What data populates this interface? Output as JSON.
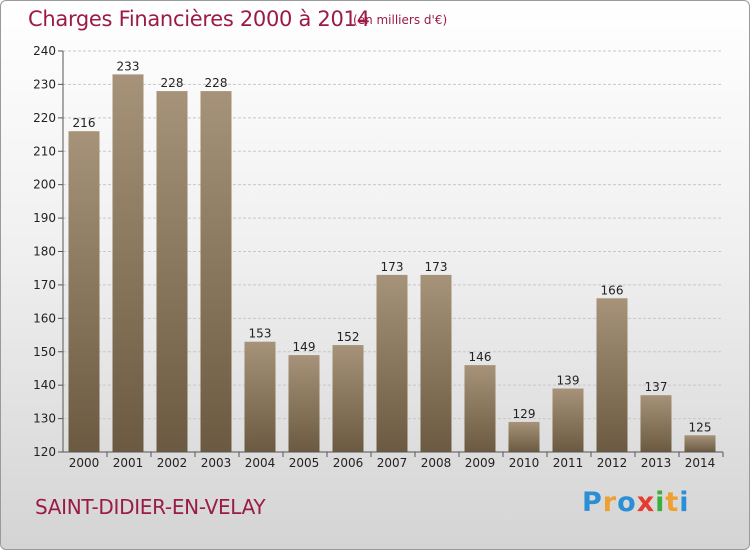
{
  "header": {
    "title": "Charges Financières 2000 à 2014",
    "subtitle": "(en milliers d'€)"
  },
  "footer": {
    "city": "SAINT-DIDIER-EN-VELAY",
    "logo_letters": [
      {
        "char": "P",
        "color": "#2a8fd6"
      },
      {
        "char": "r",
        "color": "#f0a030"
      },
      {
        "char": "o",
        "color": "#2a8fd6"
      },
      {
        "char": "x",
        "color": "#e63c2f"
      },
      {
        "char": "i",
        "color": "#3cae3c"
      },
      {
        "char": "t",
        "color": "#f0a030"
      },
      {
        "char": "i",
        "color": "#2a8fd6"
      }
    ]
  },
  "colors": {
    "bar_top": "#a69379",
    "bar_bottom": "#6b5a41",
    "grid": "#c8c8c8",
    "axis": "#555555"
  },
  "chart_data": {
    "type": "bar",
    "title": "Charges Financières 2000 à 2014",
    "subtitle": "(en milliers d'€)",
    "xlabel": "",
    "ylabel": "",
    "categories": [
      "2000",
      "2001",
      "2002",
      "2003",
      "2004",
      "2005",
      "2006",
      "2007",
      "2008",
      "2009",
      "2010",
      "2011",
      "2012",
      "2013",
      "2014"
    ],
    "values": [
      216,
      233,
      228,
      228,
      153,
      149,
      152,
      173,
      173,
      146,
      129,
      139,
      166,
      137,
      125
    ],
    "ylim": [
      120,
      240
    ],
    "yticks": [
      120,
      130,
      140,
      150,
      160,
      170,
      180,
      190,
      200,
      210,
      220,
      230,
      240
    ],
    "grid": true,
    "data_labels": true
  }
}
